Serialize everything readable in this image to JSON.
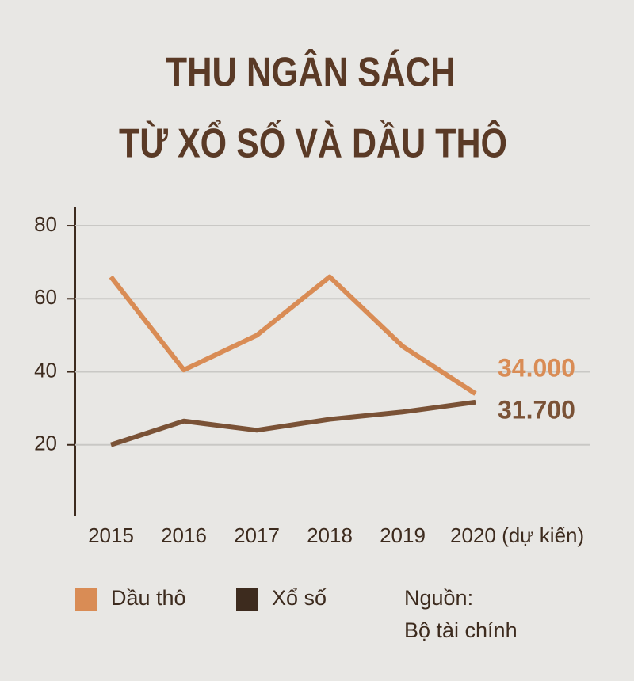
{
  "chart_data": {
    "type": "line",
    "title": [
      "THU NGÂN SÁCH",
      "TỪ XỔ SỐ VÀ DẦU THÔ"
    ],
    "categories": [
      "2015",
      "2016",
      "2017",
      "2018",
      "2019",
      "2020 (dự kiến)"
    ],
    "series": [
      {
        "name": "Dầu thô",
        "color": "#d98c55",
        "values": [
          66,
          40.5,
          50,
          66,
          47,
          34
        ],
        "value_labels": [
          null,
          null,
          null,
          null,
          null,
          "34.000"
        ]
      },
      {
        "name": "Xổ số",
        "color": "#7a5236",
        "values": [
          20,
          26.5,
          24,
          27,
          29,
          31.7
        ],
        "value_labels": [
          null,
          null,
          null,
          null,
          null,
          "31.700"
        ]
      }
    ],
    "ylim": [
      0,
      85
    ],
    "yticks": [
      20,
      40,
      60,
      80
    ],
    "grid": true,
    "source": [
      "Nguồn:",
      "Bộ tài chính"
    ]
  }
}
